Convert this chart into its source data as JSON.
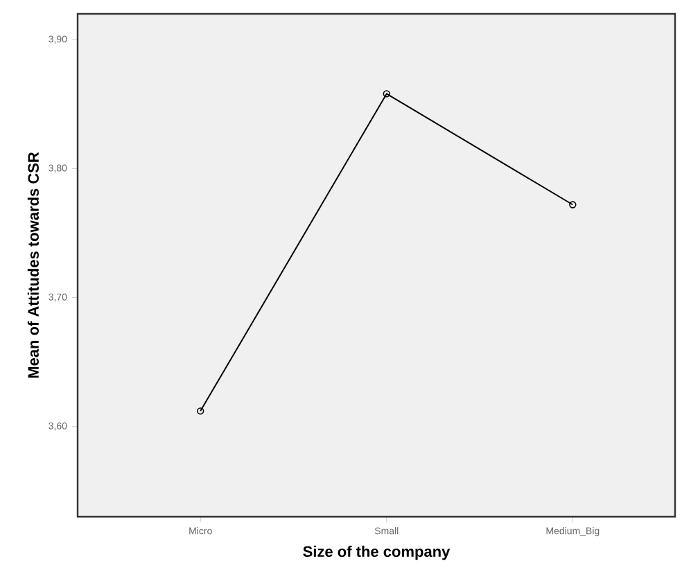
{
  "chart_data": {
    "type": "line",
    "xlabel": "Size of the company",
    "ylabel": "Mean of Attitudes towards CSR",
    "categories": [
      "Micro",
      "Small",
      "Medium_Big"
    ],
    "series": [
      {
        "color": "#000000",
        "values": [
          3.612,
          3.858,
          3.772
        ]
      }
    ],
    "ylim": [
      3.53,
      3.92
    ],
    "yticks": [
      {
        "value": 3.6,
        "label": "3,60"
      },
      {
        "value": 3.7,
        "label": "3,70"
      },
      {
        "value": 3.8,
        "label": "3,80"
      },
      {
        "value": 3.9,
        "label": "3,90"
      }
    ],
    "marker": "circle",
    "line_style": "solid"
  }
}
